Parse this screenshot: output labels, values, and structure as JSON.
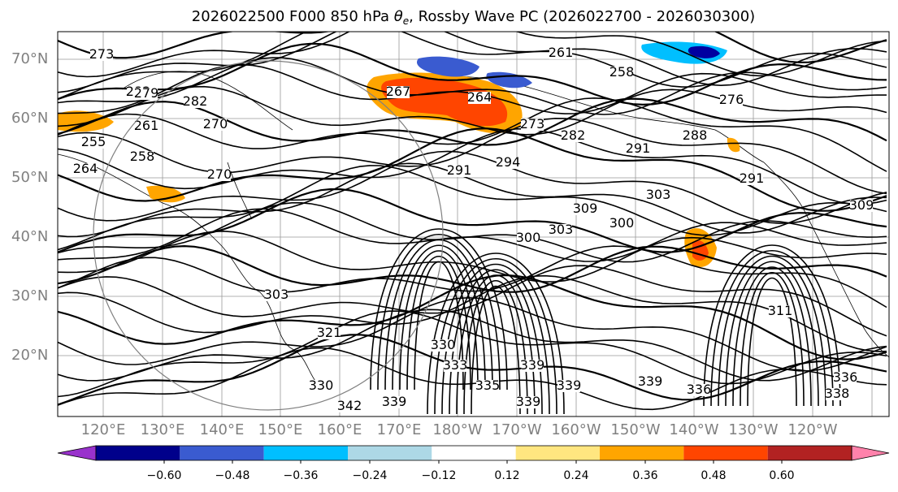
{
  "title": {
    "prefix": "2026022500 F000 850 hPa ",
    "theta": "θ",
    "theta_sub": "e",
    "suffix": ", Rossby Wave PC (2026022700 - 2026030300)"
  },
  "map": {
    "lat_labels": [
      "70°N",
      "60°N",
      "50°N",
      "40°N",
      "30°N",
      "20°N"
    ],
    "lon_labels": [
      "120°E",
      "130°E",
      "140°E",
      "150°E",
      "160°E",
      "170°E",
      "180°W",
      "170°W",
      "160°W",
      "150°W",
      "140°W",
      "130°W",
      "120°W"
    ],
    "contour_labels": [
      "273",
      "282",
      "279",
      "282",
      "261",
      "270",
      "255",
      "258",
      "264",
      "270",
      "267",
      "264",
      "261",
      "258",
      "276",
      "273",
      "282",
      "291",
      "288",
      "291",
      "294",
      "291",
      "303",
      "309",
      "300",
      "300",
      "303",
      "303",
      "309",
      "311",
      "321",
      "330",
      "333",
      "335",
      "339",
      "339",
      "336",
      "339",
      "342",
      "339",
      "339",
      "330",
      "336",
      "338"
    ],
    "shading_colors": {
      "orange": "#ffa500",
      "red_orange": "#ff4500",
      "blue": "#0000a0",
      "medium_blue": "#3a5bd0",
      "cyan": "#00bfff",
      "light_blue": "#add8f7"
    }
  },
  "colorbar": {
    "colors": [
      "#9932cc",
      "#00008b",
      "#3a5bd0",
      "#00bfff",
      "#add8e6",
      "#ffffff",
      "#ffe680",
      "#ffa500",
      "#ff4500",
      "#b22222",
      "#ff82ab"
    ],
    "labels": [
      "−0.60",
      "−0.48",
      "−0.36",
      "−0.24",
      "−0.12",
      "0.12",
      "0.24",
      "0.36",
      "0.48",
      "0.60"
    ]
  }
}
